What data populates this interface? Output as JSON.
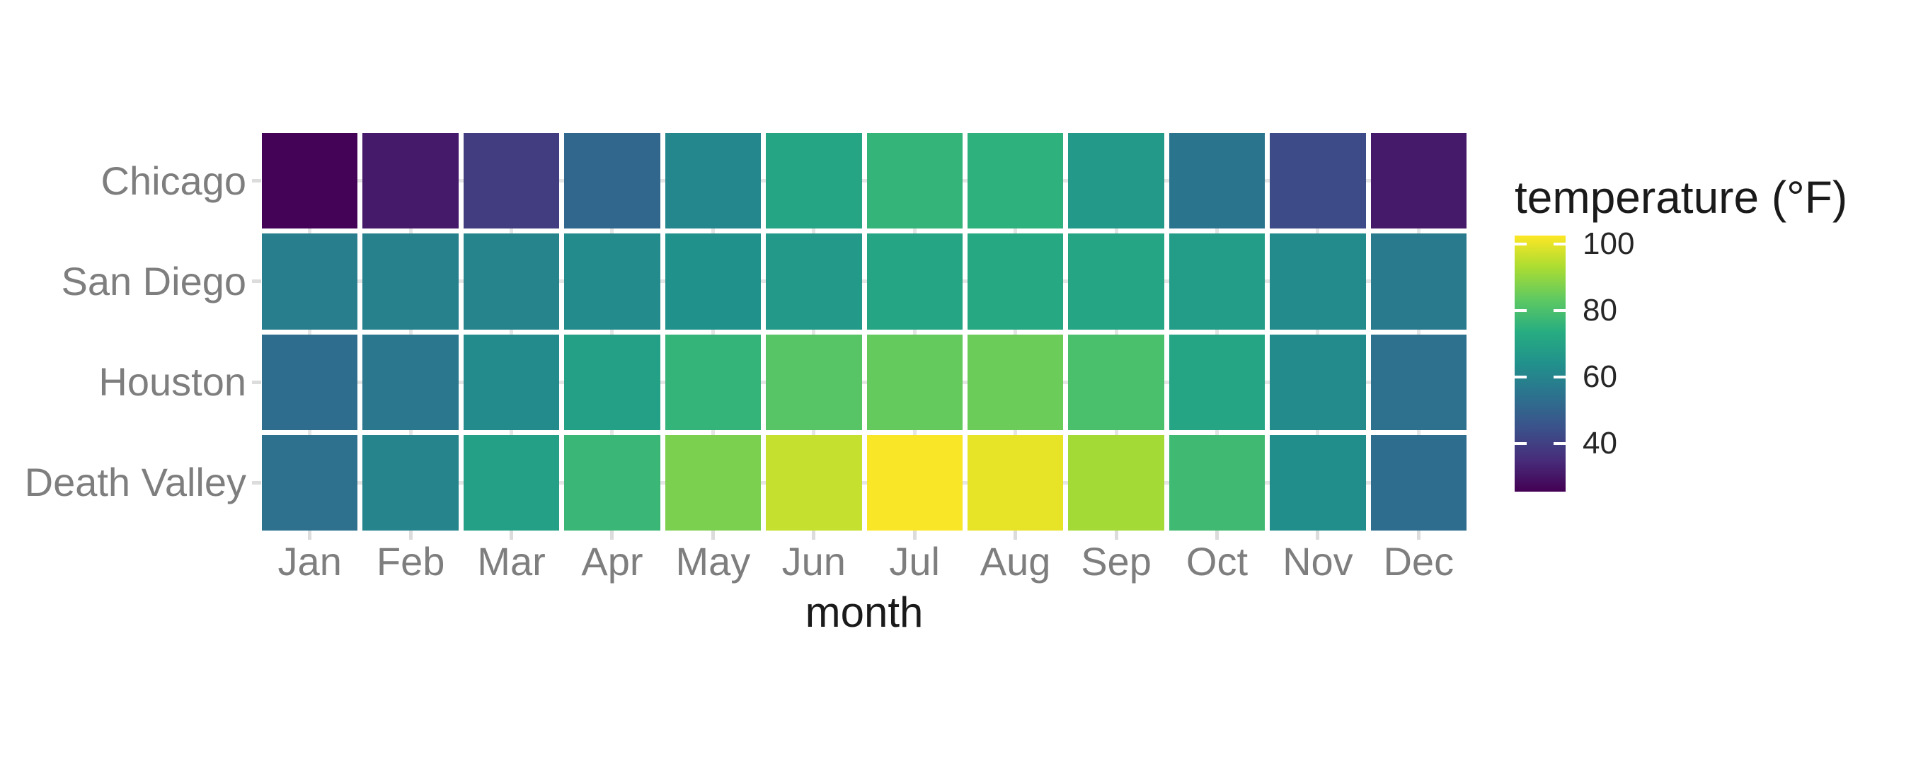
{
  "chart_data": {
    "type": "heatmap",
    "title": "",
    "xlabel": "month",
    "ylabel": "",
    "x_categories": [
      "Jan",
      "Feb",
      "Mar",
      "Apr",
      "May",
      "Jun",
      "Jul",
      "Aug",
      "Sep",
      "Oct",
      "Nov",
      "Dec"
    ],
    "y_categories": [
      "Chicago",
      "San Diego",
      "Houston",
      "Death Valley"
    ],
    "rows": [
      {
        "name": "Chicago",
        "values": [
          26,
          31,
          39,
          51,
          61,
          71,
          76,
          75,
          67,
          55,
          43,
          31
        ]
      },
      {
        "name": "San Diego",
        "values": [
          58,
          59,
          60,
          62,
          64,
          67,
          71,
          72,
          71,
          68,
          62,
          57
        ]
      },
      {
        "name": "Houston",
        "values": [
          53,
          56,
          62,
          69,
          76,
          82,
          84,
          85,
          80,
          71,
          62,
          54
        ]
      },
      {
        "name": "Death Valley",
        "values": [
          54,
          60,
          69,
          77,
          87,
          96,
          102,
          100,
          92,
          78,
          63,
          53
        ]
      }
    ],
    "color_scale": {
      "name": "viridis",
      "domain": [
        25.5,
        102.5
      ],
      "stops": [
        "#440154",
        "#472d7b",
        "#3b528b",
        "#2c728e",
        "#21918c",
        "#27ad81",
        "#5ec962",
        "#aadc32",
        "#fde725"
      ]
    },
    "legend": {
      "title": "temperature (°F)",
      "position": "right",
      "ticks": [
        100,
        80,
        60,
        40
      ]
    },
    "grid": true
  },
  "colors": {
    "axis_text": "#7e7e7e",
    "axis_title": "#1a1a1a",
    "legend_title": "#1a1a1a",
    "legend_text": "#262626",
    "gridline": "#e5e5e5",
    "axis_tick": "#dcdcdc",
    "colorbar_tick": "#ffffff",
    "background": "#ffffff"
  }
}
